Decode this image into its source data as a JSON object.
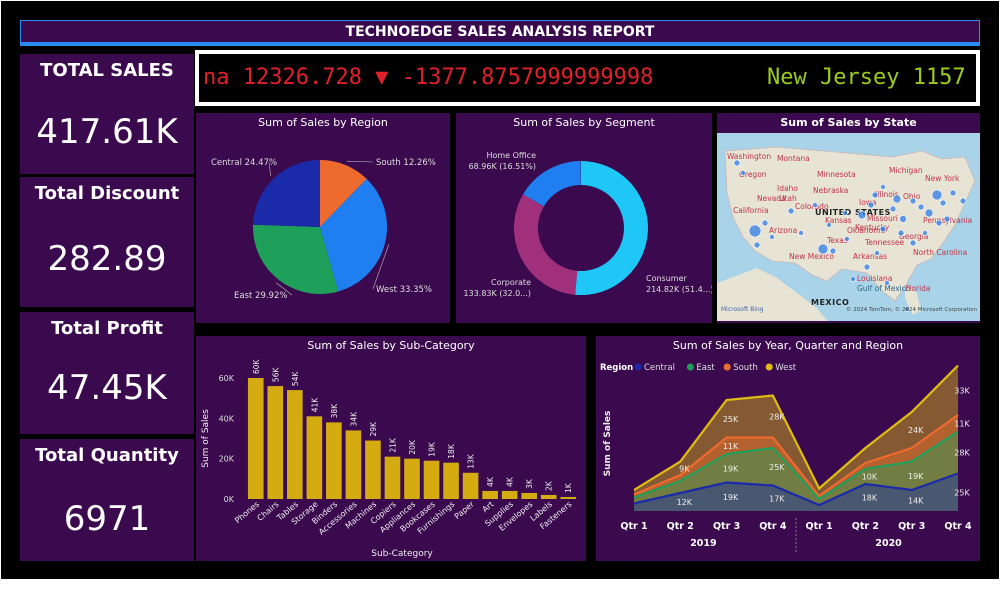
{
  "report_title": "TECHNOEDGE SALES ANALYSIS REPORT",
  "kpis": {
    "total_sales": {
      "label": "TOTAL SALES",
      "value": "417.61K"
    },
    "total_discount": {
      "label": "Total Discount",
      "value": "282.89"
    },
    "total_profit": {
      "label": "Total Profit",
      "value": "47.45K"
    },
    "total_quantity": {
      "label": "Total Quantity",
      "value": "6971"
    }
  },
  "ticker": {
    "item1_text": "na 12326.728 ▼ -1377.8757999999998",
    "item1_color": "#e0202a",
    "item2_text": "New Jersey 1157",
    "item2_color": "#9ccc1f"
  },
  "map": {
    "title": "Sum of Sales by State",
    "labels": [
      "Washington",
      "Oregon",
      "Idaho",
      "Montana",
      "California",
      "Nevada",
      "Utah",
      "Arizona",
      "Colorado",
      "Nebraska",
      "Minnesota",
      "Kansas",
      "New Mexico",
      "Texas",
      "Oklahoma",
      "Iowa",
      "Missouri",
      "Illinois",
      "Kentucky",
      "Tennessee",
      "Arkansas",
      "Louisiana",
      "Georgia",
      "Florida",
      "Ohio",
      "Michigan",
      "Pennsylvania",
      "New York",
      "North Carolina",
      "UNITED STATES",
      "Gulf of Mexico",
      "MEXICO"
    ],
    "attribution": "© 2024 TomTom, © 2024 Microsoft Corporation",
    "bing": "Microsoft Bing"
  },
  "chart_data": [
    {
      "type": "pie",
      "title": "Sum of Sales by Region",
      "slices": [
        {
          "label": "West",
          "percent": 33.35,
          "text": "West 33.35%",
          "color": "#1f7ff0"
        },
        {
          "label": "East",
          "percent": 29.92,
          "text": "East 29.92%",
          "color": "#1fa05a"
        },
        {
          "label": "Central",
          "percent": 24.47,
          "text": "Central 24.47%",
          "color": "#1a2aa8"
        },
        {
          "label": "South",
          "percent": 12.26,
          "text": "South 12.26%",
          "color": "#ee6b2f"
        }
      ]
    },
    {
      "type": "pie",
      "title": "Sum of Sales by Segment",
      "donut": true,
      "slices": [
        {
          "label": "Consumer",
          "value": 214.82,
          "percent": 51.4,
          "line1": "Consumer",
          "line2": "214.82K (51.4...)",
          "color": "#1ec7f5"
        },
        {
          "label": "Corporate",
          "value": 133.83,
          "percent": 32.0,
          "line1": "Corporate",
          "line2": "133.83K (32.0...)",
          "color": "#a0307c"
        },
        {
          "label": "Home Office",
          "value": 68.96,
          "percent": 16.51,
          "line1": "Home Office",
          "line2": "68.96K (16.51%)",
          "color": "#1f7ff0"
        }
      ]
    },
    {
      "type": "bar",
      "title": "Sum of Sales by Sub-Category",
      "xlabel": "Sub-Category",
      "ylabel": "Sum of Sales",
      "ylim": [
        0,
        60
      ],
      "yticks": [
        "0K",
        "20K",
        "40K",
        "60K"
      ],
      "color": "#d4ab10",
      "categories": [
        "Phones",
        "Chairs",
        "Tables",
        "Storage",
        "Binders",
        "Accessories",
        "Machines",
        "Copiers",
        "Appliances",
        "Bookcases",
        "Furnishings",
        "Paper",
        "Art",
        "Supplies",
        "Envelopes",
        "Labels",
        "Fasteners"
      ],
      "values": [
        60,
        56,
        54,
        41,
        38,
        34,
        29,
        21,
        20,
        19,
        18,
        13,
        4,
        4,
        3,
        2,
        1
      ],
      "labels": [
        "60K",
        "56K",
        "54K",
        "41K",
        "38K",
        "34K",
        "29K",
        "21K",
        "20K",
        "19K",
        "18K",
        "13K",
        "4K",
        "4K",
        "3K",
        "2K",
        "1K"
      ]
    },
    {
      "type": "area",
      "stacked": true,
      "title": "Sum of Sales by Year, Quarter and Region",
      "legend_title": "Region",
      "ylabel": "Sum of Sales",
      "quarters": [
        "Qtr 1",
        "Qtr 2",
        "Qtr 3",
        "Qtr 4",
        "Qtr 1",
        "Qtr 2",
        "Qtr 3",
        "Qtr 4"
      ],
      "years": [
        "2019",
        "2020"
      ],
      "series": [
        {
          "name": "Central",
          "color": "#1a2aa8",
          "values": [
            5,
            12,
            19,
            17,
            4,
            18,
            14,
            25
          ]
        },
        {
          "name": "East",
          "color": "#1fa05a",
          "values": [
            4,
            8,
            19,
            25,
            4,
            10,
            19,
            28
          ]
        },
        {
          "name": "South",
          "color": "#ee6b2f",
          "values": [
            2,
            4,
            11,
            7,
            2,
            4,
            9,
            11
          ]
        },
        {
          "name": "West",
          "color": "#e0bd12",
          "values": [
            3,
            9,
            25,
            28,
            5,
            10,
            24,
            33
          ]
        }
      ],
      "data_labels": [
        {
          "series": "Central",
          "i": 1,
          "text": "12K"
        },
        {
          "series": "Central",
          "i": 2,
          "text": "19K"
        },
        {
          "series": "Central",
          "i": 3,
          "text": "17K"
        },
        {
          "series": "Central",
          "i": 5,
          "text": "18K"
        },
        {
          "series": "Central",
          "i": 6,
          "text": "14K"
        },
        {
          "series": "Central",
          "i": 7,
          "text": "25K"
        },
        {
          "series": "East",
          "i": 2,
          "text": "19K"
        },
        {
          "series": "East",
          "i": 3,
          "text": "25K"
        },
        {
          "series": "East",
          "i": 5,
          "text": "10K"
        },
        {
          "series": "East",
          "i": 6,
          "text": "19K"
        },
        {
          "series": "East",
          "i": 7,
          "text": "28K"
        },
        {
          "series": "South",
          "i": 2,
          "text": "11K"
        },
        {
          "series": "South",
          "i": 7,
          "text": "11K"
        },
        {
          "series": "West",
          "i": 1,
          "text": "9K"
        },
        {
          "series": "West",
          "i": 2,
          "text": "25K"
        },
        {
          "series": "West",
          "i": 3,
          "text": "28K"
        },
        {
          "series": "West",
          "i": 6,
          "text": "24K"
        },
        {
          "series": "West",
          "i": 7,
          "text": "33K"
        }
      ]
    }
  ]
}
